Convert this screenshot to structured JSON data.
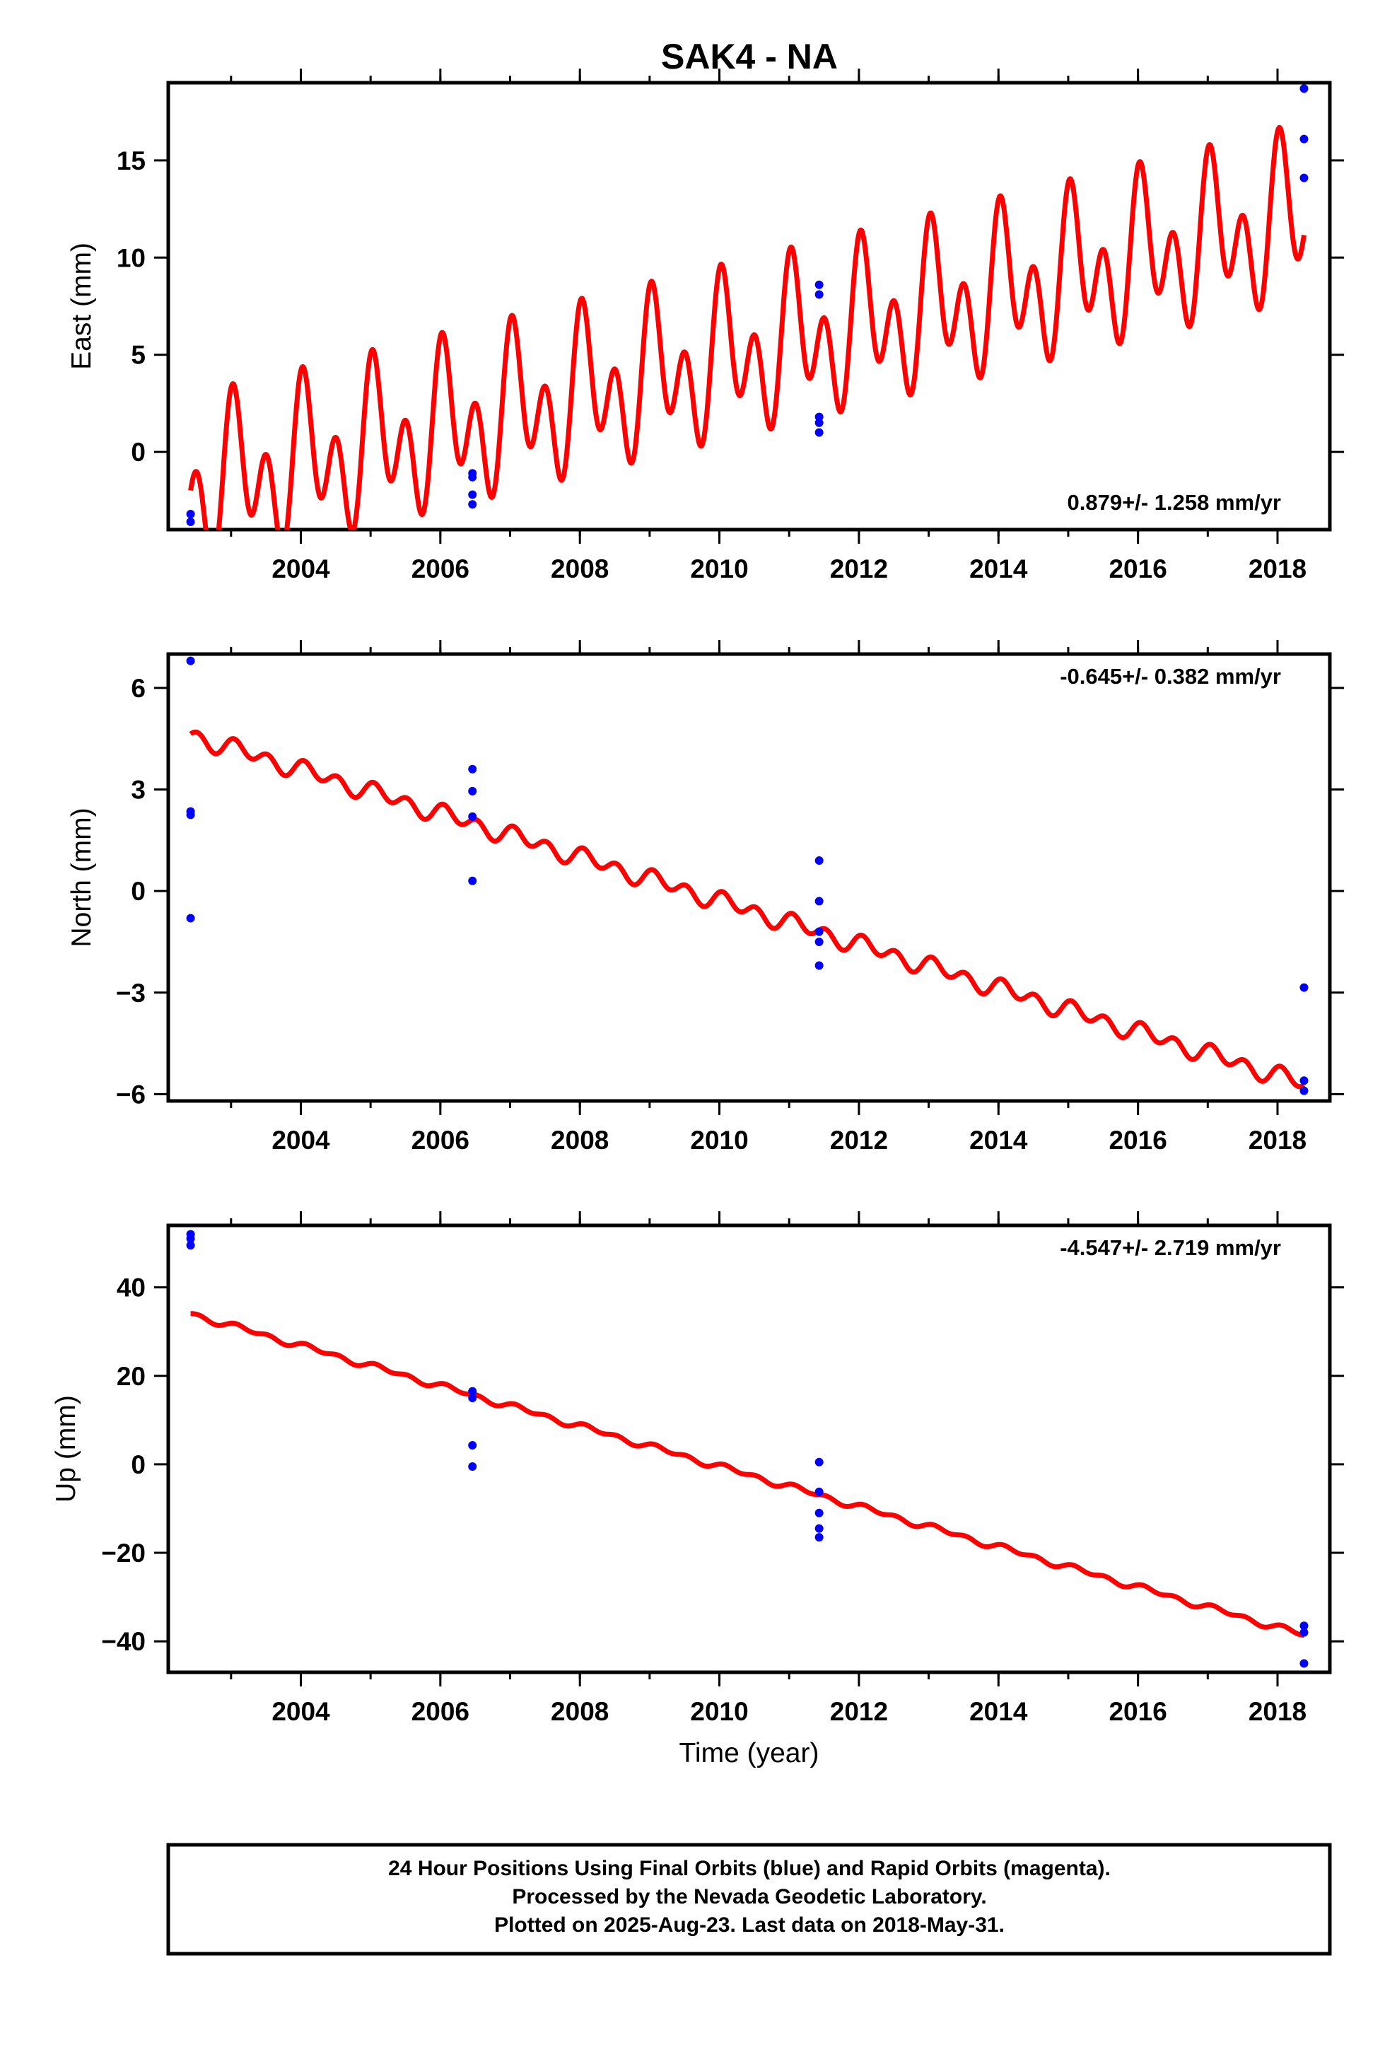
{
  "figure": {
    "title": "SAK4 - NA"
  },
  "caption": {
    "lines": [
      "24 Hour Positions Using Final Orbits (blue) and Rapid Orbits (magenta).",
      "Processed by the Nevada Geodetic Laboratory.",
      "Plotted on 2025-Aug-23. Last data on 2018-May-31."
    ]
  },
  "colors": {
    "observations": "#0000ff",
    "model": "#ff0000",
    "frame": "#000000"
  },
  "chart_data": [
    {
      "type": "scatter",
      "panel": "east",
      "ylabel": "East (mm)",
      "xlabel": "",
      "xlim": [
        2002.1,
        2018.75
      ],
      "ylim": [
        -4,
        19
      ],
      "xticks": [
        "2004",
        "2006",
        "2008",
        "2010",
        "2012",
        "2014",
        "2016",
        "2018"
      ],
      "yticks": [
        "0",
        "5",
        "10",
        "15"
      ],
      "rate_label": "0.879+/- 1.258 mm/yr",
      "series": [
        {
          "kind": "points",
          "color": "#0000ff",
          "points": [
            [
              2002.42,
              -3.2
            ],
            [
              2002.42,
              -3.6
            ],
            [
              2006.46,
              -1.1
            ],
            [
              2006.46,
              -1.3
            ],
            [
              2006.46,
              -2.2
            ],
            [
              2006.46,
              -2.7
            ],
            [
              2011.43,
              8.6
            ],
            [
              2011.43,
              8.1
            ],
            [
              2011.43,
              1.8
            ],
            [
              2011.43,
              1.5
            ],
            [
              2011.43,
              1.0
            ],
            [
              2018.38,
              18.7
            ],
            [
              2018.38,
              16.1
            ],
            [
              2018.38,
              14.1
            ]
          ]
        },
        {
          "kind": "model",
          "color": "#ff0000",
          "x_range": [
            2002.42,
            2018.38
          ],
          "intercept": -2.0,
          "rate": 0.879,
          "annual_amp": 2.3,
          "annual_phase": 1.0,
          "semiannual_amp": 2.9,
          "semiannual_phase": 1.4
        }
      ]
    },
    {
      "type": "scatter",
      "panel": "north",
      "ylabel": "North (mm)",
      "xlabel": "",
      "xlim": [
        2002.1,
        2018.75
      ],
      "ylim": [
        -6.2,
        7.0
      ],
      "xticks": [
        "2004",
        "2006",
        "2008",
        "2010",
        "2012",
        "2014",
        "2016",
        "2018"
      ],
      "yticks": [
        "6",
        "3",
        "0",
        "−3",
        "−6"
      ],
      "rate_label": "-0.645+/- 0.382 mm/yr",
      "series": [
        {
          "kind": "points",
          "color": "#0000ff",
          "points": [
            [
              2002.42,
              6.8
            ],
            [
              2002.42,
              2.35
            ],
            [
              2002.42,
              2.25
            ],
            [
              2002.42,
              -0.8
            ],
            [
              2006.46,
              3.6
            ],
            [
              2006.46,
              2.95
            ],
            [
              2006.46,
              2.2
            ],
            [
              2006.46,
              0.3
            ],
            [
              2011.43,
              0.9
            ],
            [
              2011.43,
              -0.3
            ],
            [
              2011.43,
              -1.2
            ],
            [
              2011.43,
              -1.5
            ],
            [
              2011.43,
              -2.2
            ],
            [
              2018.38,
              -2.85
            ],
            [
              2018.38,
              -5.6
            ],
            [
              2018.38,
              -5.9
            ]
          ]
        },
        {
          "kind": "model",
          "color": "#ff0000",
          "x_range": [
            2002.42,
            2018.38
          ],
          "intercept": 4.6,
          "rate": -0.645,
          "annual_amp": 0.12,
          "annual_phase": 0.5,
          "semiannual_amp": 0.22,
          "semiannual_phase": 1.2
        }
      ]
    },
    {
      "type": "scatter",
      "panel": "up",
      "ylabel": "Up (mm)",
      "xlabel": "Time (year)",
      "xlim": [
        2002.1,
        2018.75
      ],
      "ylim": [
        -47,
        54
      ],
      "xticks": [
        "2004",
        "2006",
        "2008",
        "2010",
        "2012",
        "2014",
        "2016",
        "2018"
      ],
      "yticks": [
        "40",
        "20",
        "0",
        "−20",
        "−40"
      ],
      "rate_label": "-4.547+/- 2.719 mm/yr",
      "series": [
        {
          "kind": "points",
          "color": "#0000ff",
          "points": [
            [
              2002.42,
              52.0
            ],
            [
              2002.42,
              51.0
            ],
            [
              2002.42,
              49.5
            ],
            [
              2006.46,
              16.5
            ],
            [
              2006.46,
              15.0
            ],
            [
              2006.46,
              4.3
            ],
            [
              2006.46,
              -0.5
            ],
            [
              2011.43,
              0.5
            ],
            [
              2011.43,
              -6.2
            ],
            [
              2011.43,
              -11.0
            ],
            [
              2011.43,
              -14.5
            ],
            [
              2011.43,
              -16.5
            ],
            [
              2018.38,
              -36.5
            ],
            [
              2018.38,
              -38.0
            ],
            [
              2018.38,
              -45.0
            ]
          ]
        },
        {
          "kind": "model",
          "color": "#ff0000",
          "x_range": [
            2002.42,
            2018.38
          ],
          "intercept": 34.0,
          "rate": -4.547,
          "annual_amp": 0.4,
          "annual_phase": 0.3,
          "semiannual_amp": 0.5,
          "semiannual_phase": 1.0
        }
      ]
    }
  ]
}
